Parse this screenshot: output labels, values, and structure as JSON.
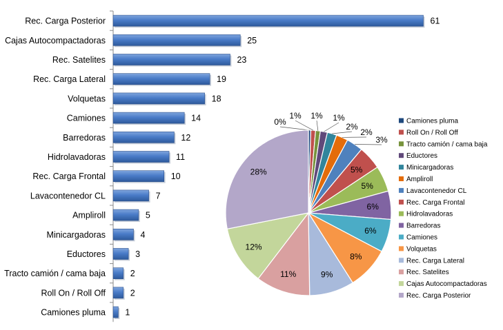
{
  "chart_data": [
    {
      "type": "bar",
      "orientation": "horizontal",
      "categories": [
        "Rec. Carga Posterior",
        "Cajas Autocompactadoras",
        "Rec. Satelites",
        "Rec. Carga Lateral",
        "Volquetas",
        "Camiones",
        "Barredoras",
        "Hidrolavadoras",
        "Rec. Carga Frontal",
        "Lavacontenedor CL",
        "Ampliroll",
        "Minicargadoras",
        "Eductores",
        "Tracto camión / cama baja",
        "Roll On / Roll Off",
        "Camiones pluma"
      ],
      "values": [
        61,
        25,
        23,
        19,
        18,
        14,
        12,
        11,
        10,
        7,
        5,
        4,
        3,
        2,
        2,
        1
      ],
      "xlim": [
        0,
        65
      ],
      "bar_color": "#4472C4",
      "data_labels": true,
      "grid": false
    },
    {
      "type": "pie",
      "labels": [
        "Camiones pluma",
        "Roll On / Roll Off",
        "Tracto camión / cama baja",
        "Eductores",
        "Minicargadoras",
        "Ampliroll",
        "Lavacontenedor CL",
        "Rec. Carga Frontal",
        "Hidrolavadoras",
        "Barredoras",
        "Camiones",
        "Volquetas",
        "Rec. Carga Lateral",
        "Rec. Satelites",
        "Cajas Autocompactadoras",
        "Rec. Carga Posterior"
      ],
      "values": [
        1,
        2,
        2,
        3,
        4,
        5,
        7,
        10,
        11,
        12,
        14,
        18,
        19,
        23,
        25,
        61
      ],
      "percent_labels": [
        "0%",
        "1%",
        "1%",
        "1%",
        "2%",
        "2%",
        "3%",
        "5%",
        "5%",
        "6%",
        "6%",
        "8%",
        "9%",
        "11%",
        "12%",
        "28%"
      ],
      "colors": [
        "#1F497D",
        "#C0504D",
        "#77933C",
        "#60497A",
        "#31859C",
        "#E46C0A",
        "#4F81BD",
        "#C0504D",
        "#9BBB59",
        "#8064A2",
        "#4BACC6",
        "#F79646",
        "#A8BADB",
        "#D9A0A0",
        "#C3D69B",
        "#B3A7C9"
      ],
      "legend": "right"
    }
  ]
}
